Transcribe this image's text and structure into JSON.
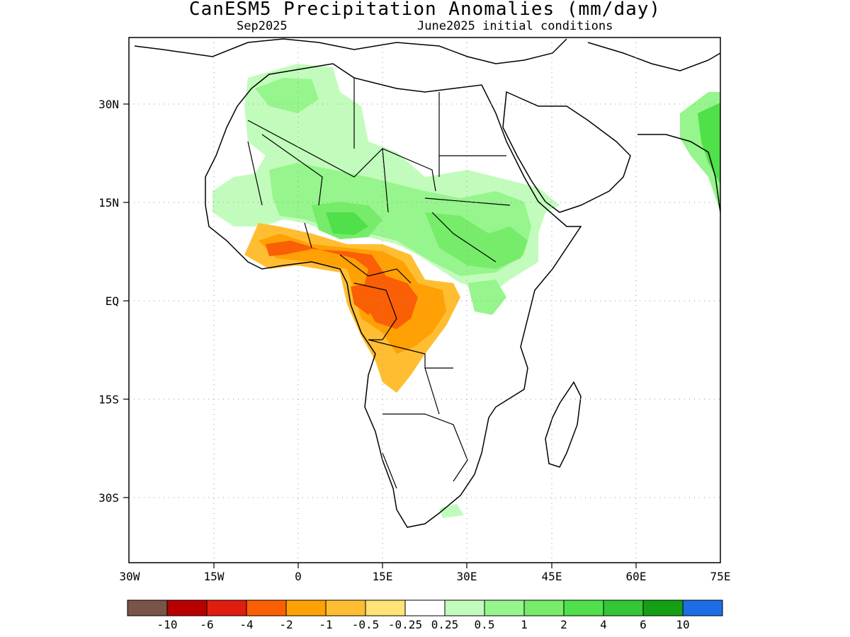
{
  "title": "CanESM5 Precipitation Anomalies (mm/day)",
  "subtitle_left": "Sep2025",
  "subtitle_right": "June2025 initial conditions",
  "map": {
    "lon_range": [
      -30,
      75
    ],
    "lat_range": [
      -40,
      40
    ],
    "lat_ticks": [
      {
        "value": 30,
        "label": "30N"
      },
      {
        "value": 15,
        "label": "15N"
      },
      {
        "value": 0,
        "label": "EQ"
      },
      {
        "value": -15,
        "label": "15S"
      },
      {
        "value": -30,
        "label": "30S"
      }
    ],
    "lon_ticks": [
      {
        "value": -30,
        "label": "30W"
      },
      {
        "value": -15,
        "label": "15W"
      },
      {
        "value": 0,
        "label": "0"
      },
      {
        "value": 15,
        "label": "15E"
      },
      {
        "value": 30,
        "label": "30E"
      },
      {
        "value": 45,
        "label": "45E"
      },
      {
        "value": 60,
        "label": "60E"
      },
      {
        "value": 75,
        "label": "75E"
      }
    ],
    "grid": "dotted"
  },
  "colorbar": {
    "colors": [
      "#7a5446",
      "#b80000",
      "#e01e10",
      "#fa5f05",
      "#ffa005",
      "#ffbe32",
      "#ffe278",
      "#ffffff",
      "#c2fcbc",
      "#96f58c",
      "#76ec6a",
      "#50e04a",
      "#34c634",
      "#14a014",
      "#1c6ee6"
    ],
    "labels": [
      "-10",
      "-6",
      "-4",
      "-2",
      "-1",
      "-0.5",
      "-0.25",
      "0.25",
      "0.5",
      "1",
      "2",
      "4",
      "6",
      "10"
    ]
  }
}
